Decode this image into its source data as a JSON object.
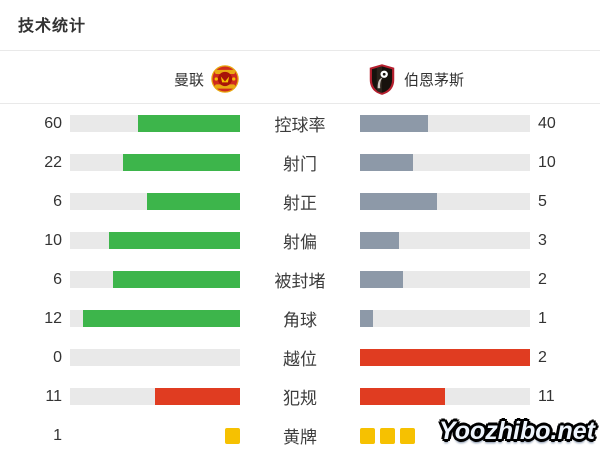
{
  "page": {
    "title": "技术统计",
    "watermark": "Yoozhibo.net"
  },
  "teams": {
    "home": {
      "name": "曼联",
      "logo": "manchester-united-crest"
    },
    "away": {
      "name": "伯恩茅斯",
      "logo": "bournemouth-crest"
    }
  },
  "colors": {
    "green": "#3db54b",
    "gray": "#8d99a8",
    "red": "#e03c21",
    "yellow": "#f6c101",
    "track": "#e9e9e9"
  },
  "stats": {
    "rows": [
      {
        "label": "控球率",
        "home": 60,
        "away": 40,
        "home_color": "green",
        "away_color": "gray",
        "type": "bar"
      },
      {
        "label": "射门",
        "home": 22,
        "away": 10,
        "home_color": "green",
        "away_color": "gray",
        "type": "bar"
      },
      {
        "label": "射正",
        "home": 6,
        "away": 5,
        "home_color": "green",
        "away_color": "gray",
        "type": "bar"
      },
      {
        "label": "射偏",
        "home": 10,
        "away": 3,
        "home_color": "green",
        "away_color": "gray",
        "type": "bar"
      },
      {
        "label": "被封堵",
        "home": 6,
        "away": 2,
        "home_color": "green",
        "away_color": "gray",
        "type": "bar"
      },
      {
        "label": "角球",
        "home": 12,
        "away": 1,
        "home_color": "green",
        "away_color": "gray",
        "type": "bar"
      },
      {
        "label": "越位",
        "home": 0,
        "away": 2,
        "home_color": "green",
        "away_color": "red",
        "type": "bar"
      },
      {
        "label": "犯规",
        "home": 11,
        "away": 11,
        "home_color": "red",
        "away_color": "red",
        "type": "bar"
      },
      {
        "label": "黄牌",
        "home": 1,
        "away": 3,
        "home_color": "yellow",
        "away_color": "yellow",
        "type": "cards",
        "away_number_hidden": true
      }
    ]
  },
  "chart_data": {
    "type": "bar",
    "title": "技术统计",
    "orientation": "horizontal-mirrored",
    "categories": [
      "控球率",
      "射门",
      "射正",
      "射偏",
      "被封堵",
      "角球",
      "越位",
      "犯规",
      "黄牌"
    ],
    "series": [
      {
        "name": "曼联",
        "values": [
          60,
          22,
          6,
          10,
          6,
          12,
          0,
          11,
          1
        ]
      },
      {
        "name": "伯恩茅斯",
        "values": [
          40,
          10,
          5,
          3,
          2,
          1,
          2,
          11,
          3
        ]
      }
    ],
    "bar_fill_rule": "each bar fill = value / (home+away) of its row",
    "legend_position": "top",
    "grid": false
  }
}
